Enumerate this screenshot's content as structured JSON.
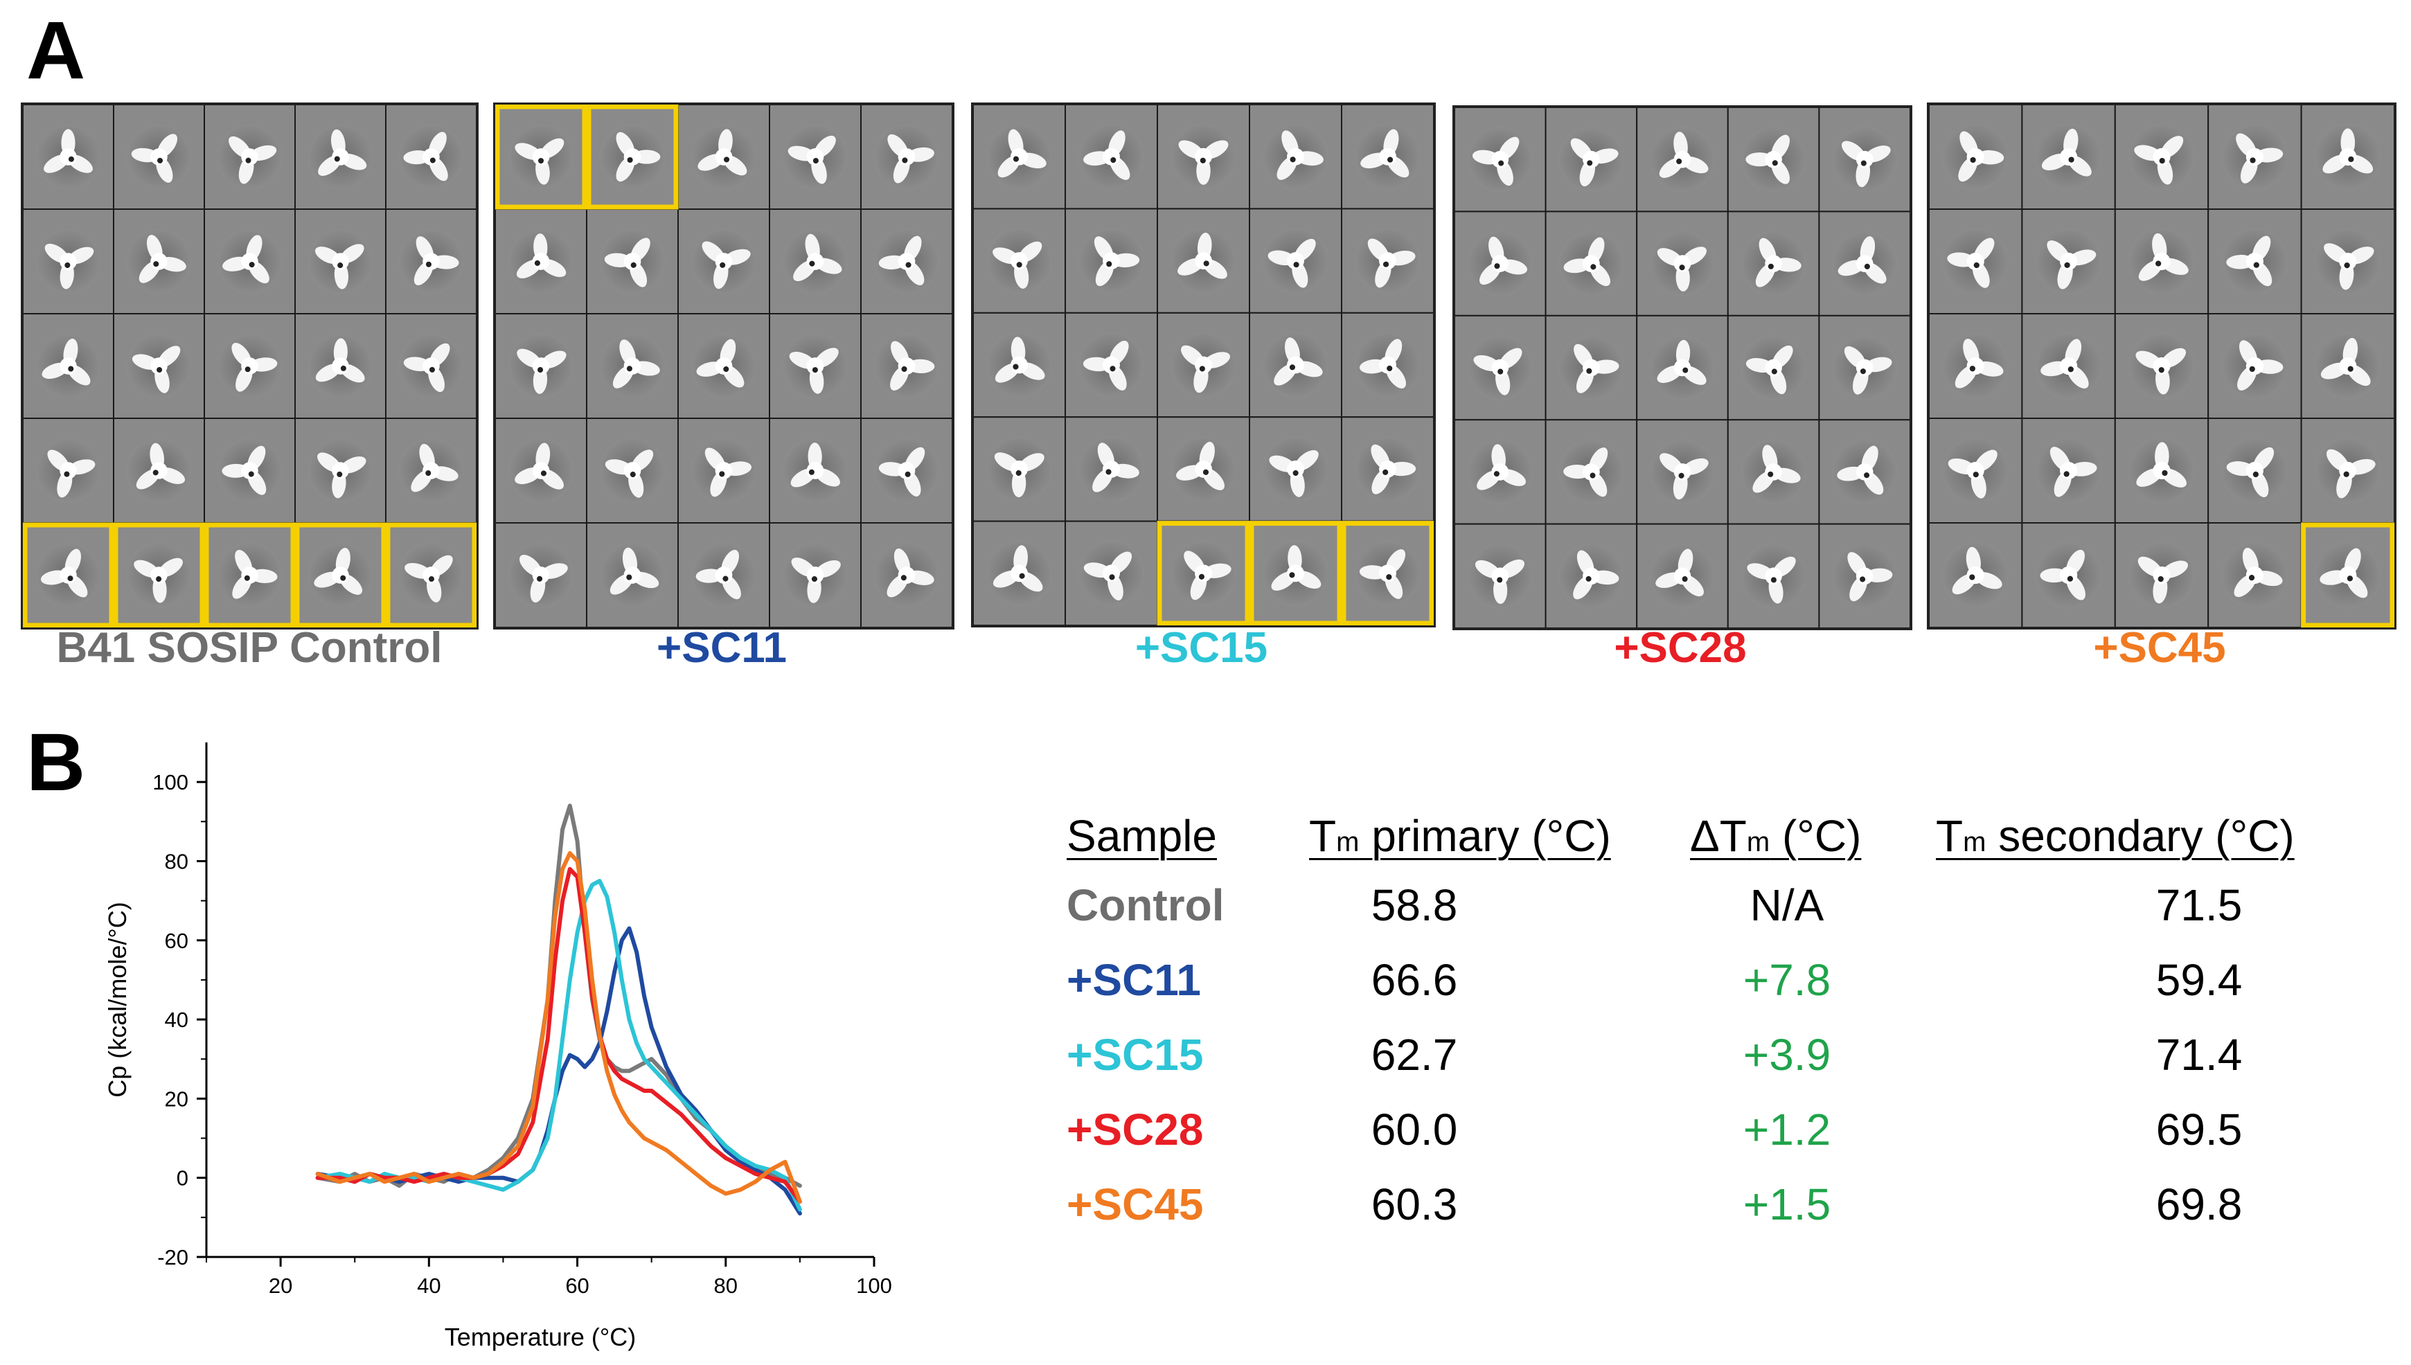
{
  "panels": {
    "a_letter": "A",
    "b_letter": "B"
  },
  "micrograph_grids": [
    {
      "label": "B41 SOSIP Control",
      "color": "#6e6e6e",
      "highlighted": [
        [
          4,
          0
        ],
        [
          4,
          1
        ],
        [
          4,
          2
        ],
        [
          4,
          3
        ],
        [
          4,
          4
        ]
      ]
    },
    {
      "label": "+SC11",
      "color": "#1f4aa0",
      "highlighted": [
        [
          0,
          0
        ],
        [
          0,
          1
        ]
      ]
    },
    {
      "label": "+SC15",
      "color": "#2cc4d6",
      "highlighted": [
        [
          4,
          2
        ],
        [
          4,
          3
        ],
        [
          4,
          4
        ]
      ]
    },
    {
      "label": "+SC28",
      "color": "#e81e25",
      "highlighted": []
    },
    {
      "label": "+SC45",
      "color": "#f07a21",
      "highlighted": [
        [
          4,
          4
        ]
      ]
    }
  ],
  "highlight_color": "#f5d000",
  "chart_data": {
    "type": "line",
    "xlabel": "Temperature (°C)",
    "ylabel": "Cp (kcal/mole/°C)",
    "xlim": [
      10,
      100
    ],
    "ylim": [
      -20,
      110
    ],
    "xticks": [
      20,
      40,
      60,
      80,
      100
    ],
    "yticks": [
      -20,
      0,
      20,
      40,
      60,
      80,
      100
    ],
    "series": [
      {
        "name": "Control",
        "color": "#7a7a7a",
        "x": [
          25,
          28,
          30,
          32,
          34,
          36,
          38,
          40,
          42,
          44,
          46,
          48,
          50,
          52,
          54,
          56,
          57,
          58,
          59,
          60,
          61,
          62,
          63,
          64,
          65,
          66,
          67,
          68,
          69,
          70,
          72,
          74,
          76,
          78,
          80,
          82,
          84,
          86,
          88,
          90
        ],
        "y": [
          0,
          -1,
          1,
          -1,
          0,
          -2,
          1,
          0,
          -1,
          1,
          0,
          2,
          5,
          10,
          20,
          45,
          70,
          88,
          94,
          85,
          62,
          45,
          35,
          30,
          28,
          27,
          27,
          28,
          29,
          30,
          26,
          20,
          15,
          12,
          8,
          5,
          3,
          1,
          0,
          -2
        ]
      },
      {
        "name": "+SC11",
        "color": "#1f4aa0",
        "x": [
          25,
          28,
          30,
          32,
          34,
          36,
          38,
          40,
          42,
          44,
          46,
          48,
          50,
          52,
          54,
          55,
          56,
          57,
          58,
          59,
          60,
          61,
          62,
          63,
          64,
          65,
          66,
          67,
          68,
          69,
          70,
          71,
          72,
          74,
          76,
          78,
          80,
          82,
          84,
          86,
          88,
          90
        ],
        "y": [
          1,
          0,
          -1,
          1,
          0,
          -1,
          0,
          1,
          0,
          -1,
          0,
          0,
          0,
          -1,
          2,
          6,
          12,
          20,
          27,
          31,
          30,
          28,
          30,
          34,
          42,
          52,
          60,
          63,
          57,
          46,
          38,
          33,
          28,
          21,
          17,
          12,
          7,
          4,
          2,
          0,
          -3,
          -9
        ]
      },
      {
        "name": "+SC15",
        "color": "#2cc4d6",
        "x": [
          25,
          28,
          30,
          32,
          34,
          36,
          38,
          40,
          42,
          44,
          46,
          48,
          50,
          52,
          54,
          56,
          57,
          58,
          59,
          60,
          61,
          62,
          63,
          64,
          65,
          66,
          67,
          68,
          69,
          70,
          72,
          74,
          76,
          78,
          80,
          82,
          84,
          86,
          88,
          90
        ],
        "y": [
          0,
          1,
          0,
          -1,
          1,
          0,
          0,
          -1,
          1,
          0,
          -1,
          -2,
          -3,
          -1,
          2,
          10,
          20,
          35,
          50,
          62,
          70,
          74,
          75,
          71,
          62,
          50,
          40,
          34,
          30,
          28,
          24,
          20,
          16,
          12,
          8,
          5,
          3,
          2,
          0,
          -8
        ]
      },
      {
        "name": "+SC28",
        "color": "#e81e25",
        "x": [
          25,
          28,
          30,
          32,
          34,
          36,
          38,
          40,
          42,
          44,
          46,
          48,
          50,
          52,
          54,
          56,
          57,
          58,
          59,
          60,
          61,
          62,
          63,
          64,
          65,
          66,
          67,
          68,
          69,
          70,
          72,
          74,
          76,
          78,
          80,
          82,
          84,
          86,
          88,
          90
        ],
        "y": [
          0,
          0,
          -1,
          1,
          0,
          0,
          -1,
          0,
          1,
          0,
          0,
          1,
          3,
          6,
          14,
          35,
          55,
          70,
          78,
          76,
          62,
          46,
          36,
          30,
          27,
          25,
          24,
          23,
          22,
          22,
          19,
          16,
          12,
          8,
          5,
          3,
          1,
          0,
          -1,
          -6
        ]
      },
      {
        "name": "+SC45",
        "color": "#f07a21",
        "x": [
          25,
          28,
          30,
          32,
          34,
          36,
          38,
          40,
          42,
          44,
          46,
          48,
          50,
          52,
          54,
          56,
          57,
          58,
          59,
          60,
          61,
          62,
          63,
          64,
          65,
          66,
          67,
          68,
          69,
          70,
          72,
          74,
          76,
          78,
          80,
          82,
          84,
          86,
          88,
          90
        ],
        "y": [
          1,
          -1,
          0,
          1,
          -1,
          0,
          1,
          -1,
          0,
          1,
          0,
          1,
          4,
          8,
          18,
          45,
          66,
          78,
          82,
          80,
          68,
          50,
          36,
          27,
          21,
          17,
          14,
          12,
          10,
          9,
          7,
          4,
          1,
          -2,
          -4,
          -3,
          -1,
          2,
          4,
          -6
        ]
      }
    ]
  },
  "table": {
    "headers": {
      "sample": "Sample",
      "tm_primary_pre": "T",
      "tm_primary_sub": "m",
      "tm_primary_post": " primary (°C)",
      "dtm_pre": "ΔT",
      "dtm_sub": "m",
      "dtm_post": " (°C)",
      "tm_secondary_pre": "T",
      "tm_secondary_sub": "m",
      "tm_secondary_post": " secondary (°C)"
    },
    "rows": [
      {
        "sample": "Control",
        "sample_color": "#6e6e6e",
        "tm_primary": "58.8",
        "dtm": "N/A",
        "dtm_color": "#000000",
        "tm_secondary": "71.5"
      },
      {
        "sample": "+SC11",
        "sample_color": "#1f4aa0",
        "tm_primary": "66.6",
        "dtm": "+7.8",
        "dtm_color": "#1fa34a",
        "tm_secondary": "59.4"
      },
      {
        "sample": "+SC15",
        "sample_color": "#2cc4d6",
        "tm_primary": "62.7",
        "dtm": "+3.9",
        "dtm_color": "#1fa34a",
        "tm_secondary": "71.4"
      },
      {
        "sample": "+SC28",
        "sample_color": "#e81e25",
        "tm_primary": "60.0",
        "dtm": "+1.2",
        "dtm_color": "#1fa34a",
        "tm_secondary": "69.5"
      },
      {
        "sample": "+SC45",
        "sample_color": "#f07a21",
        "tm_primary": "60.3",
        "dtm": "+1.5",
        "dtm_color": "#1fa34a",
        "tm_secondary": "69.8"
      }
    ]
  }
}
